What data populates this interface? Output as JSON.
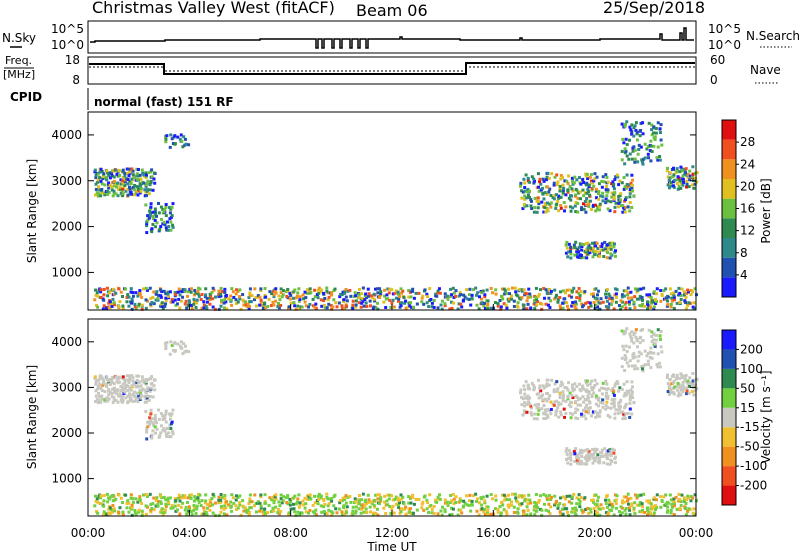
{
  "header": {
    "station": "Christmas Valley West (fitACF)",
    "beam": "Beam 06",
    "date": "25/Sep/2018"
  },
  "noise_panel": {
    "left_label": "N.Sky",
    "right_label": "N.Search",
    "left_ticks": [
      "10^5",
      "10^0"
    ],
    "right_ticks": [
      "10^5",
      "10^0"
    ]
  },
  "freq_panel": {
    "left_label_1": "Freq.",
    "left_label_2": "[MHz]",
    "right_label": "Nave",
    "left_ticks": [
      "18",
      "8"
    ],
    "right_ticks": [
      "60",
      "0"
    ]
  },
  "cpid": {
    "label": "CPID",
    "value": "normal (fast) 151 RF"
  },
  "colors": {
    "power": [
      "#1a1aff",
      "#2050b0",
      "#2e8a8a",
      "#2e8a50",
      "#6cc040",
      "#e0c020",
      "#f09020",
      "#f05020",
      "#e01010"
    ],
    "velocity": [
      "#e01010",
      "#f05020",
      "#f09020",
      "#f0c030",
      "#c8c8c0",
      "#70d040",
      "#2e8a50",
      "#2050b0",
      "#1a1aff"
    ],
    "ground_scatter": "#c8c8c0"
  },
  "chart_data": [
    {
      "type": "heatmap",
      "name": "Power",
      "xlabel": "",
      "ylabel": "Slant Range [km]",
      "xlim": [
        0,
        24
      ],
      "ylim": [
        180,
        4500
      ],
      "y_ticks": [
        "4000",
        "3000",
        "2000",
        "1000"
      ],
      "colorbar": {
        "label": "Power [dB]",
        "range": [
          0,
          32
        ],
        "ticks": [
          "28",
          "24",
          "20",
          "16",
          "12",
          "8",
          "4"
        ]
      }
    },
    {
      "type": "heatmap",
      "name": "Velocity",
      "xlabel": "Time UT",
      "ylabel": "Slant Range [km]",
      "xlim": [
        0,
        24
      ],
      "ylim": [
        180,
        4500
      ],
      "x_ticks": [
        "00:00",
        "04:00",
        "08:00",
        "12:00",
        "16:00",
        "20:00",
        "00:00"
      ],
      "y_ticks": [
        "4000",
        "3000",
        "2000",
        "1000"
      ],
      "colorbar": {
        "label": "Velocity [m s⁻¹]",
        "range": [
          -250,
          250
        ],
        "ticks": [
          "200",
          "100",
          "50",
          "15",
          "-15",
          "-50",
          "-100",
          "-200"
        ]
      }
    }
  ]
}
